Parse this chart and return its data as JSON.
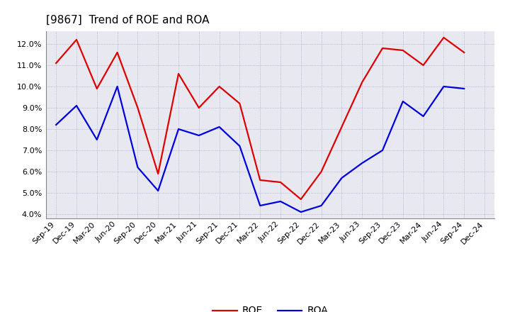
{
  "title": "[9867]  Trend of ROE and ROA",
  "x_labels": [
    "Sep-19",
    "Dec-19",
    "Mar-20",
    "Jun-20",
    "Sep-20",
    "Dec-20",
    "Mar-21",
    "Jun-21",
    "Sep-21",
    "Dec-21",
    "Mar-22",
    "Jun-22",
    "Sep-22",
    "Dec-22",
    "Mar-23",
    "Jun-23",
    "Sep-23",
    "Dec-23",
    "Mar-24",
    "Jun-24",
    "Sep-24",
    "Dec-24"
  ],
  "roe": [
    11.1,
    12.2,
    9.9,
    11.6,
    9.0,
    5.9,
    10.6,
    9.0,
    10.0,
    9.2,
    5.6,
    5.5,
    4.7,
    6.0,
    8.1,
    10.2,
    11.8,
    11.7,
    11.0,
    12.3,
    11.6,
    null
  ],
  "roa": [
    8.2,
    9.1,
    7.5,
    10.0,
    6.2,
    5.1,
    8.0,
    7.7,
    8.1,
    7.2,
    4.4,
    4.6,
    4.1,
    4.4,
    5.7,
    6.4,
    7.0,
    9.3,
    8.6,
    10.0,
    9.9,
    null
  ],
  "roe_color": "#dd0000",
  "roa_color": "#0000dd",
  "ylim": [
    3.8,
    12.6
  ],
  "yticks": [
    4.0,
    5.0,
    6.0,
    7.0,
    8.0,
    9.0,
    10.0,
    11.0,
    12.0
  ],
  "plot_bg_color": "#e8e8f0",
  "fig_bg_color": "#ffffff",
  "grid_color": "#aaaacc",
  "title_fontsize": 11,
  "axis_fontsize": 8,
  "legend_fontsize": 10
}
